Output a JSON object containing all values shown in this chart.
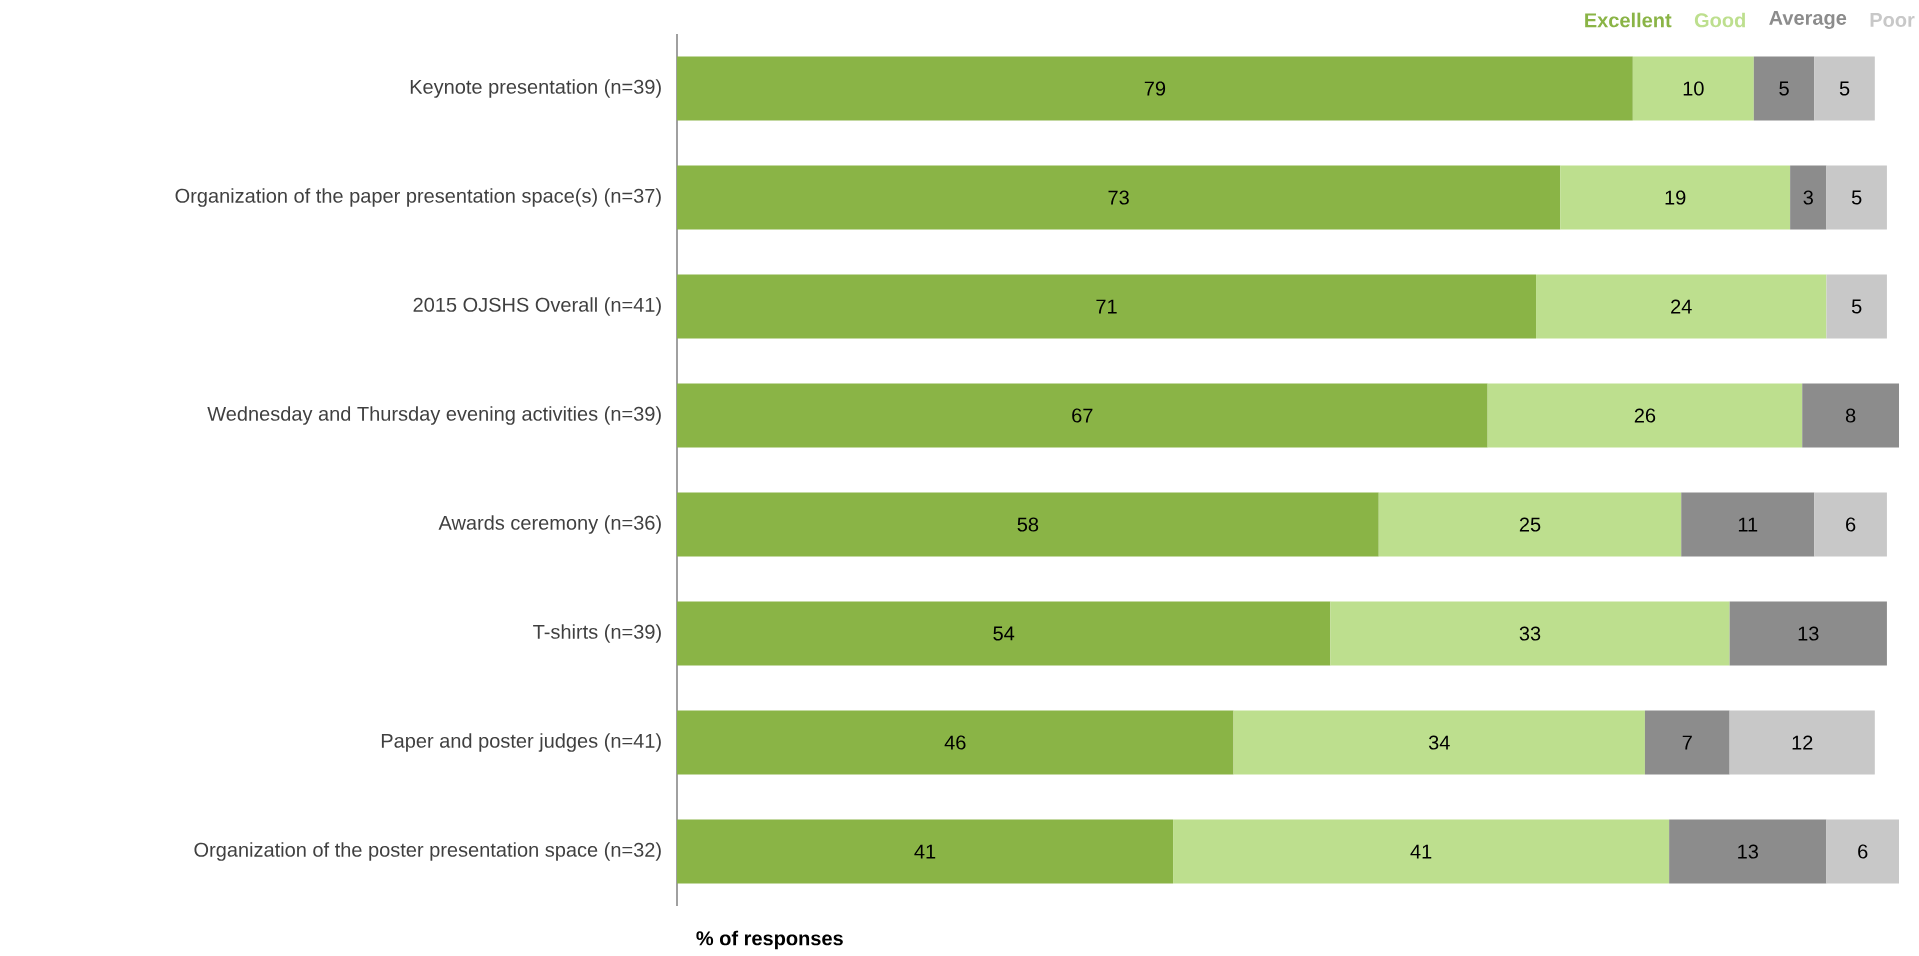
{
  "chart_data": {
    "type": "bar",
    "orientation": "horizontal",
    "stacked": true,
    "data_labels": true,
    "legend": "top right",
    "tick_labels": "y",
    "xlabel": "% of responses",
    "categories": [
      "Keynote presentation (n=39)",
      "Organization of the paper presentation space(s) (n=37)",
      "2015 OJSHS Overall (n=41)",
      "Wednesday and Thursday evening activities (n=39)",
      "Awards ceremony (n=36)",
      "T-shirts (n=39)",
      "Paper and poster judges (n=41)",
      "Organization of the poster presentation space (n=32)"
    ],
    "xlim": [
      0,
      101
    ],
    "series": [
      {
        "name": "Excellent",
        "color": "#8ab446",
        "values": [
          79,
          73,
          71,
          67,
          58,
          54,
          46,
          41
        ]
      },
      {
        "name": "Good",
        "color": "#bddf8e",
        "values": [
          10,
          19,
          24,
          26,
          25,
          33,
          34,
          41
        ]
      },
      {
        "name": "Average",
        "color": "#8c8c8c",
        "values": [
          5,
          3,
          null,
          8,
          11,
          13,
          7,
          13
        ]
      },
      {
        "name": "Poor",
        "color": "#c8c8c8",
        "values": [
          5,
          5,
          5,
          null,
          6,
          null,
          12,
          6
        ]
      }
    ]
  }
}
